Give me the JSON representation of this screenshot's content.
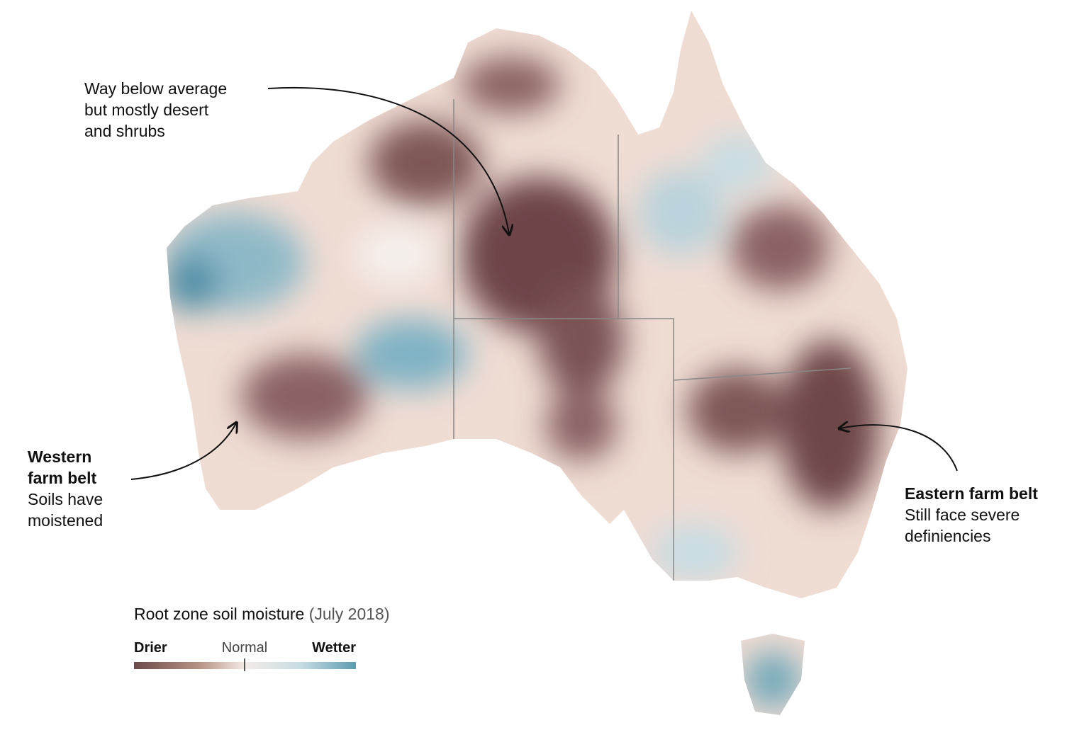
{
  "annotations": [
    {
      "lines": [
        "Way below average",
        "but mostly desert",
        "and shrubs"
      ]
    },
    {
      "title_lines": [
        "Western",
        "farm belt"
      ],
      "body_lines": [
        "Soils have",
        "moistened"
      ]
    },
    {
      "title_lines": [
        "Eastern farm belt"
      ],
      "body_lines": [
        "Still face severe",
        "definiencies"
      ]
    }
  ],
  "legend": {
    "title": "Root zone soil moisture",
    "subtitle": "(July 2018)",
    "low_label": "Drier",
    "mid_label": "Normal",
    "high_label": "Wetter"
  }
}
